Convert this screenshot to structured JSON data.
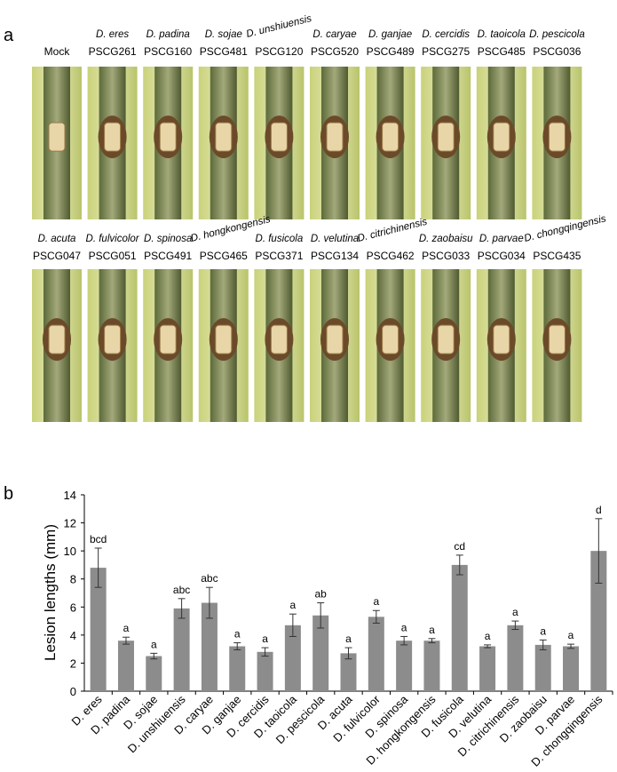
{
  "panel_a": {
    "label": "a",
    "rows": [
      [
        {
          "code": "Mock"
        },
        {
          "species": "D. eres",
          "code": "PSCG261"
        },
        {
          "species": "D. padina",
          "code": "PSCG160"
        },
        {
          "species": "D. sojae",
          "code": "PSCG481"
        },
        {
          "species": "D. unshiuensis",
          "code": "PSCG120"
        },
        {
          "species": "D. caryae",
          "code": "PSCG520"
        },
        {
          "species": "D. ganjae",
          "code": "PSCG489"
        },
        {
          "species": "D. cercidis",
          "code": "PSCG275"
        },
        {
          "species": "D. taoicola",
          "code": "PSCG485"
        },
        {
          "species": "D. pescicola",
          "code": "PSCG036"
        }
      ],
      [
        {
          "species": "D. acuta",
          "code": "PSCG047"
        },
        {
          "species": "D. fulvicolor",
          "code": "PSCG051"
        },
        {
          "species": "D. spinosa",
          "code": "PSCG491"
        },
        {
          "species": "D. hongkongensis",
          "code": "PSCG465"
        },
        {
          "species": "D. fusicola",
          "code": "PSCG371"
        },
        {
          "species": "D. velutina",
          "code": "PSCG134"
        },
        {
          "species": "D. citrichinensis",
          "code": "PSCG462"
        },
        {
          "species": "D. zaobaisu",
          "code": "PSCG033"
        },
        {
          "species": "D. parvae",
          "code": "PSCG034"
        },
        {
          "species": "D. chongqingensis",
          "code": "PSCG435"
        }
      ]
    ]
  },
  "chart_data": {
    "type": "bar",
    "panel_label": "b",
    "ylabel": "Lesion lengths (mm)",
    "categories": [
      "D. eres",
      "D. padina",
      "D. sojae",
      "D. unshiuensis",
      "D. caryae",
      "D. ganjae",
      "D. cercidis",
      "D. taoicola",
      "D. pescicola",
      "D. acuta",
      "D. fulvicolor",
      "D. spinosa",
      "D. hongkongensis",
      "D. fusicola",
      "D. velutina",
      "D. citrichinensis",
      "D. zaobaisu",
      "D. parvae",
      "D. chongqingensis"
    ],
    "values": [
      8.8,
      3.6,
      2.5,
      5.9,
      6.3,
      3.2,
      2.8,
      4.7,
      5.4,
      2.7,
      5.3,
      3.6,
      3.6,
      9.0,
      3.2,
      4.7,
      3.3,
      3.2,
      10.0
    ],
    "errors": [
      1.4,
      0.25,
      0.2,
      0.7,
      1.1,
      0.25,
      0.3,
      0.8,
      0.9,
      0.4,
      0.45,
      0.3,
      0.15,
      0.7,
      0.1,
      0.3,
      0.35,
      0.15,
      2.3
    ],
    "letters": [
      "bcd",
      "a",
      "a",
      "abc",
      "abc",
      "a",
      "a",
      "a",
      "ab",
      "a",
      "a",
      "a",
      "a",
      "cd",
      "a",
      "a",
      "a",
      "a",
      "d"
    ],
    "color": "#8c8c8c",
    "ylim": [
      0,
      14
    ],
    "yticks": [
      0,
      2,
      4,
      6,
      8,
      10,
      12,
      14
    ]
  }
}
